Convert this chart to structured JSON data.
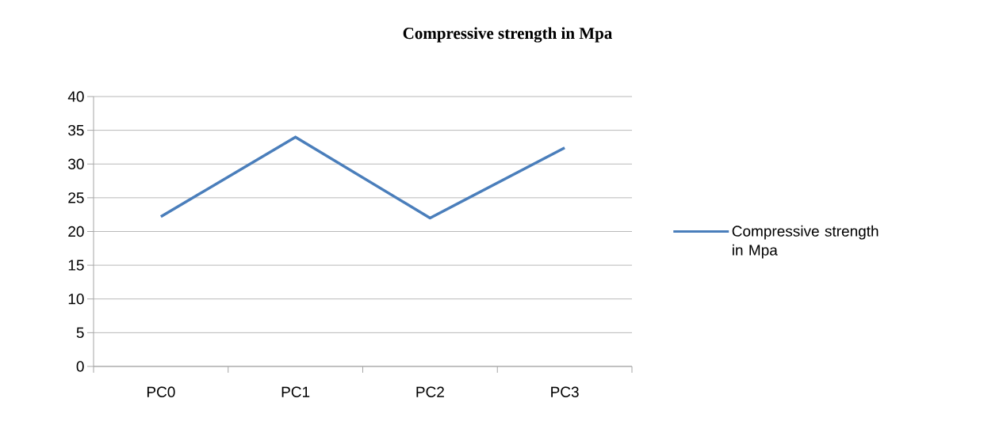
{
  "chart_data": {
    "type": "line",
    "title": "Compressive strength in Mpa",
    "categories": [
      "PC0",
      "PC1",
      "PC2",
      "PC3"
    ],
    "series": [
      {
        "name": "Compressive strength in Mpa",
        "color": "#4a7ebb",
        "values": [
          22.2,
          34,
          22,
          32.4
        ]
      }
    ],
    "ylim": [
      0,
      40
    ],
    "yticks": [
      0,
      5,
      10,
      15,
      20,
      25,
      30,
      35,
      40
    ],
    "grid": "y",
    "legend": "right",
    "marker": "none",
    "line_style": "solid"
  }
}
